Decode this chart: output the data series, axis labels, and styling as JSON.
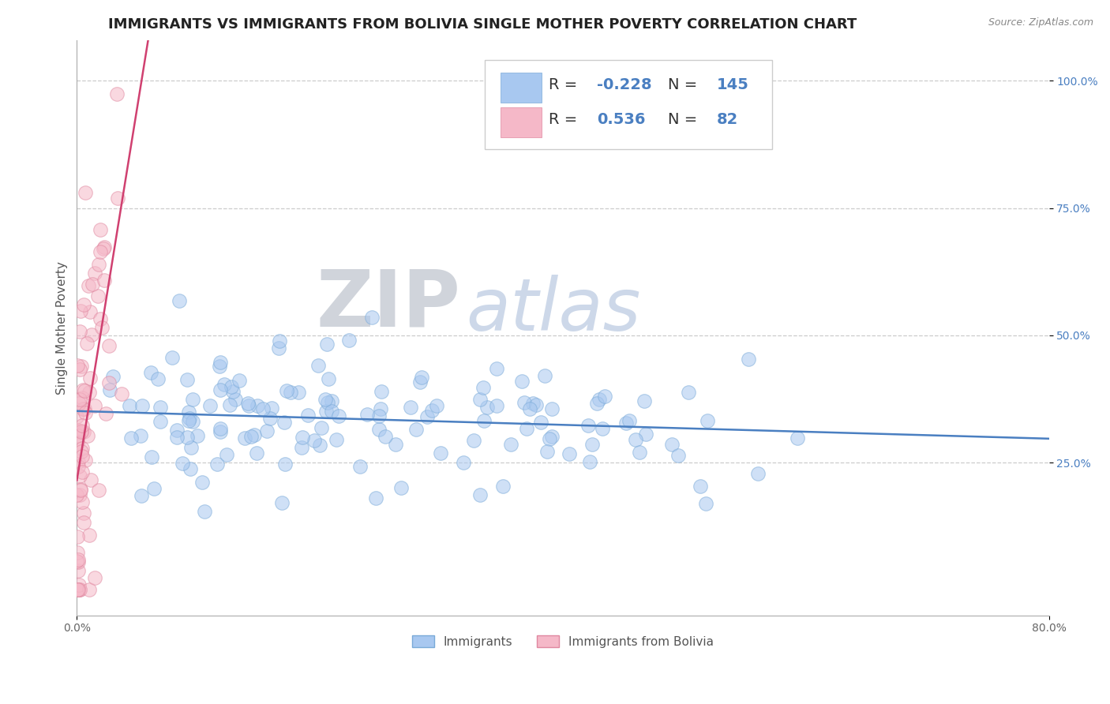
{
  "title": "IMMIGRANTS VS IMMIGRANTS FROM BOLIVIA SINGLE MOTHER POVERTY CORRELATION CHART",
  "source": "Source: ZipAtlas.com",
  "xlabel_blue": "Immigrants",
  "xlabel_pink": "Immigrants from Bolivia",
  "ylabel": "Single Mother Poverty",
  "xlim": [
    0.0,
    0.8
  ],
  "ylim": [
    -0.05,
    1.08
  ],
  "ytick_positions": [
    0.25,
    0.5,
    0.75,
    1.0
  ],
  "ytick_labels": [
    "25.0%",
    "50.0%",
    "75.0%",
    "100.0%"
  ],
  "blue_dot_color": "#a8c8f0",
  "blue_dot_edge": "#7aaad8",
  "pink_dot_color": "#f5b8c8",
  "pink_dot_edge": "#e088a0",
  "blue_line_color": "#4a7fc1",
  "pink_line_color": "#d04070",
  "legend_blue_R": "-0.228",
  "legend_blue_N": "145",
  "legend_pink_R": "0.536",
  "legend_pink_N": "82",
  "watermark_ZIP": "ZIP",
  "watermark_atlas": "atlas",
  "title_fontsize": 13,
  "axis_label_fontsize": 11,
  "tick_fontsize": 10,
  "legend_fontsize": 14
}
